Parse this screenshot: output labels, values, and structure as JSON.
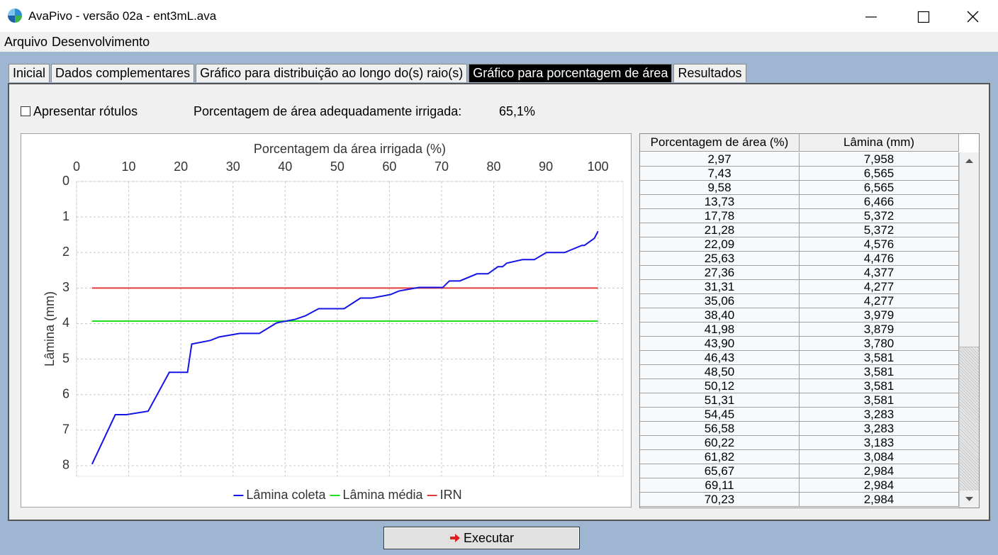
{
  "window": {
    "title": "AvaPivo - versão 02a - ent3mL.ava"
  },
  "menu": [
    "Arquivo",
    "Desenvolvimento"
  ],
  "tabs": [
    "Inicial",
    "Dados complementares",
    "Gráfico para distribuição ao longo do(s) raio(s)",
    "Gráfico para porcentagem de área",
    "Resultados"
  ],
  "active_tab": 3,
  "options": {
    "label": "Apresentar rótulos",
    "checked": false
  },
  "summary": {
    "label": "Porcentagem de área adequadamente irrigada:",
    "value": "65,1%"
  },
  "chart_data": {
    "type": "line",
    "x_label": "Porcentagem da área irrigada (%)",
    "y_label": "Lâmina (mm)",
    "xlim": [
      0,
      104.8
    ],
    "ylim": [
      0,
      8.3
    ],
    "y_inverted": true,
    "x_axis_position": "top",
    "xticks": [
      0,
      10,
      20,
      30,
      40,
      50,
      60,
      70,
      80,
      90,
      100
    ],
    "yticks": [
      0,
      1,
      2,
      3,
      4,
      5,
      6,
      7,
      8
    ],
    "grid": true,
    "legend": "bottom",
    "series": [
      {
        "name": "Lâmina coleta",
        "color": "#1414e6",
        "x": [
          2.97,
          7.43,
          9.58,
          13.73,
          17.78,
          21.28,
          22.09,
          25.63,
          27.36,
          31.31,
          35.06,
          38.4,
          41.98,
          43.9,
          46.43,
          48.5,
          50.12,
          51.31,
          54.45,
          56.58,
          60.22,
          61.82,
          65.67,
          69.11,
          70.23,
          71.5,
          73.5,
          76.8,
          78.9,
          80.8,
          81.7,
          82.5,
          85.5,
          87.8,
          90.1,
          93.6,
          96.9,
          97.4,
          99.3,
          100
        ],
        "values": [
          7.958,
          6.565,
          6.565,
          6.466,
          5.372,
          5.372,
          4.576,
          4.476,
          4.377,
          4.277,
          4.277,
          3.979,
          3.879,
          3.78,
          3.581,
          3.581,
          3.581,
          3.581,
          3.283,
          3.283,
          3.183,
          3.084,
          2.984,
          2.984,
          2.984,
          2.8,
          2.8,
          2.6,
          2.6,
          2.4,
          2.4,
          2.3,
          2.2,
          2.2,
          2.0,
          2.0,
          1.8,
          1.8,
          1.6,
          1.4
        ]
      },
      {
        "name": "Lâmina média",
        "color": "#1ee01e",
        "x": [
          2.97,
          100
        ],
        "values": [
          3.93,
          3.93
        ]
      },
      {
        "name": "IRN",
        "color": "#e03a3a",
        "x": [
          2.97,
          100
        ],
        "values": [
          3,
          3
        ]
      }
    ]
  },
  "table": {
    "columns": [
      "Porcentagem de área (%)",
      "Lâmina (mm)"
    ],
    "rows": [
      [
        "2,97",
        "7,958"
      ],
      [
        "7,43",
        "6,565"
      ],
      [
        "9,58",
        "6,565"
      ],
      [
        "13,73",
        "6,466"
      ],
      [
        "17,78",
        "5,372"
      ],
      [
        "21,28",
        "5,372"
      ],
      [
        "22,09",
        "4,576"
      ],
      [
        "25,63",
        "4,476"
      ],
      [
        "27,36",
        "4,377"
      ],
      [
        "31,31",
        "4,277"
      ],
      [
        "35,06",
        "4,277"
      ],
      [
        "38,40",
        "3,979"
      ],
      [
        "41,98",
        "3,879"
      ],
      [
        "43,90",
        "3,780"
      ],
      [
        "46,43",
        "3,581"
      ],
      [
        "48,50",
        "3,581"
      ],
      [
        "50,12",
        "3,581"
      ],
      [
        "51,31",
        "3,581"
      ],
      [
        "54,45",
        "3,283"
      ],
      [
        "56,58",
        "3,283"
      ],
      [
        "60,22",
        "3,183"
      ],
      [
        "61,82",
        "3,084"
      ],
      [
        "65,67",
        "2,984"
      ],
      [
        "69,11",
        "2,984"
      ],
      [
        "70,23",
        "2,984"
      ]
    ]
  },
  "button": "Executar"
}
